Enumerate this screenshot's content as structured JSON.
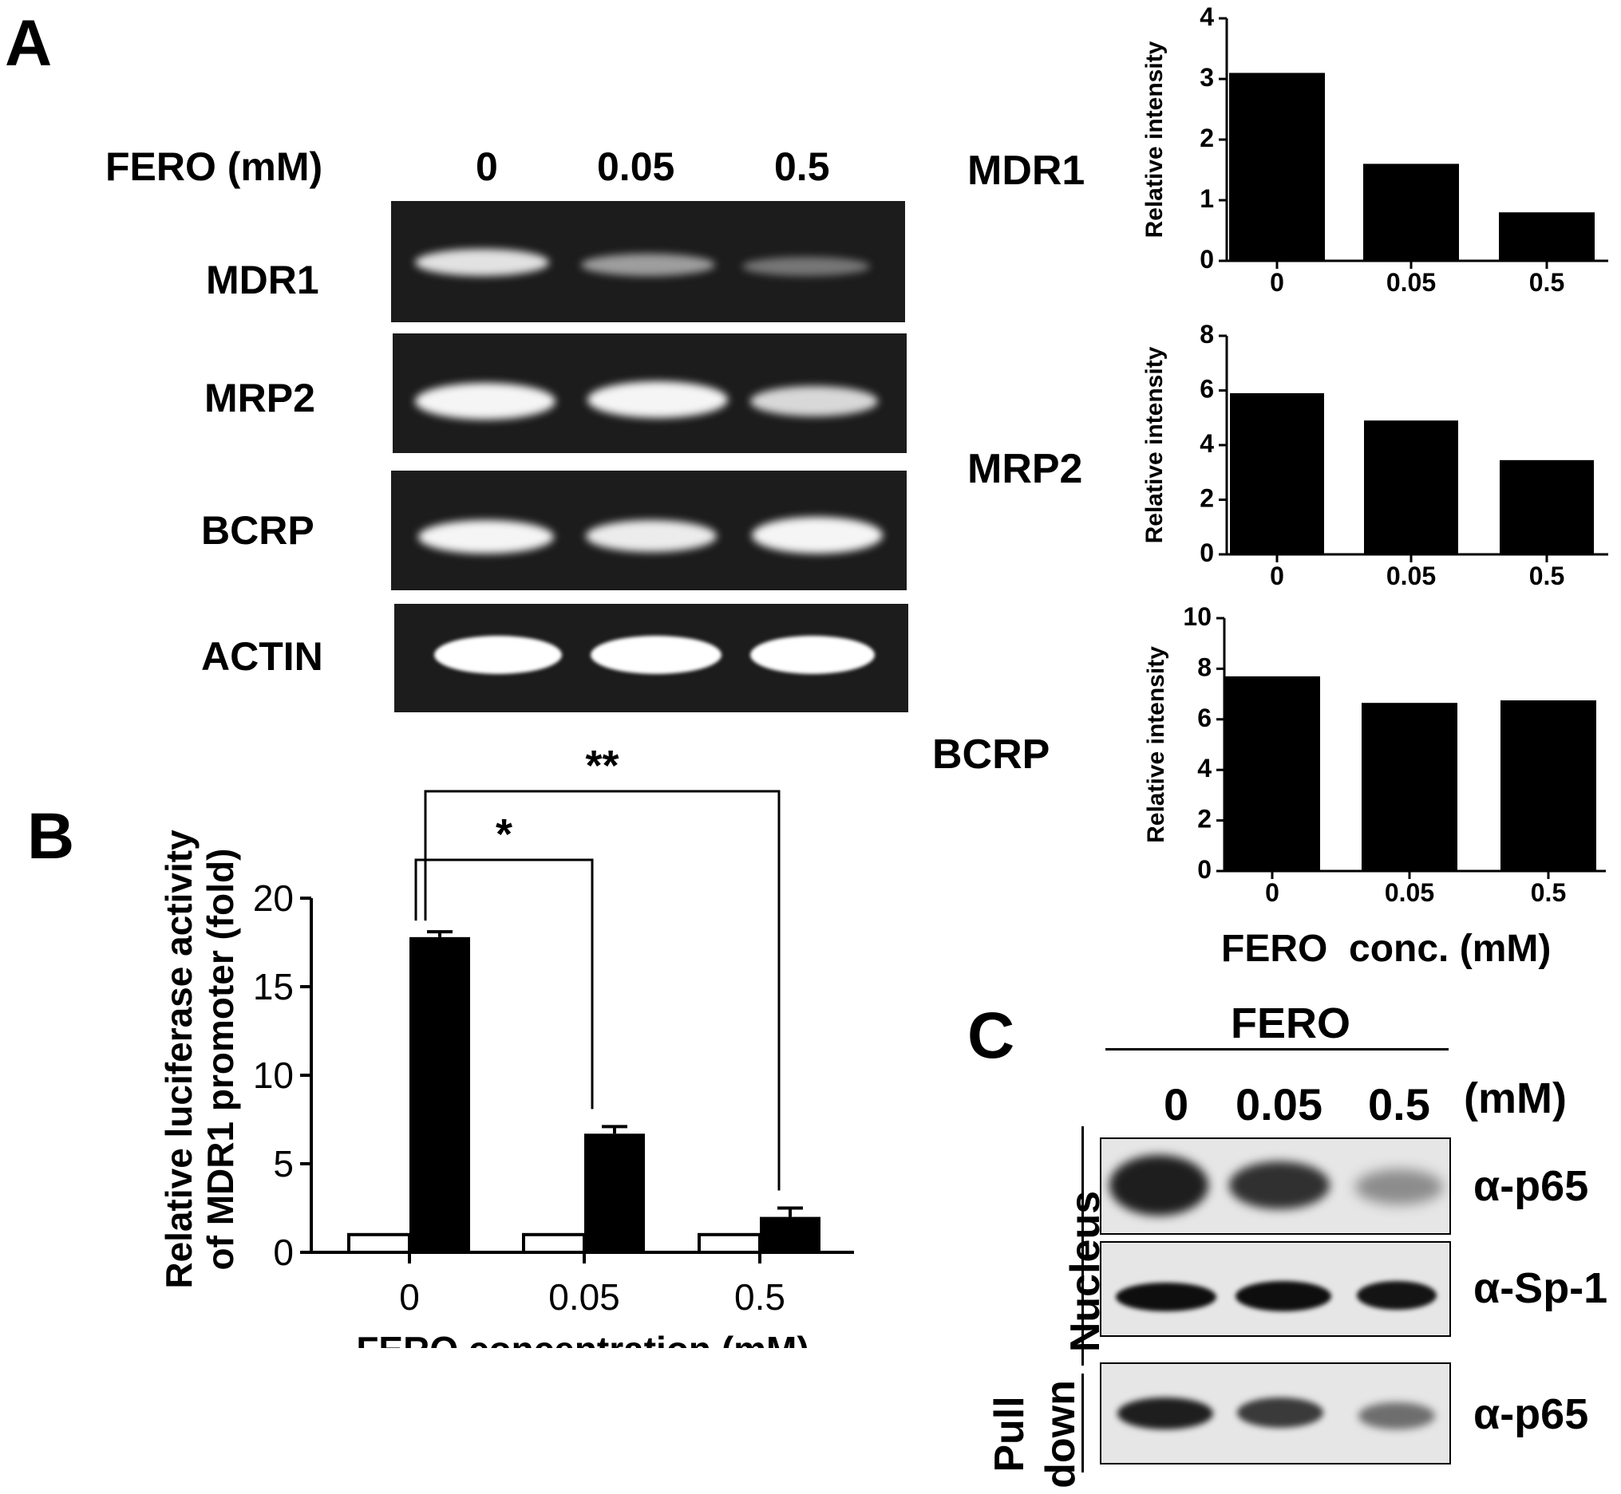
{
  "panels": {
    "a": "A",
    "b": "B",
    "c": "C"
  },
  "gel_a": {
    "header_label": "FERO (mM)",
    "lanes": [
      "0",
      "0.05",
      "0.5"
    ],
    "rows": [
      "MDR1",
      "MRP2",
      "BCRP",
      "ACTIN"
    ],
    "band_intensity": {
      "MDR1": [
        0.85,
        0.5,
        0.3
      ],
      "MRP2": [
        0.95,
        0.95,
        0.8
      ],
      "BCRP": [
        0.95,
        0.9,
        0.95
      ],
      "ACTIN": [
        1.0,
        1.0,
        1.0
      ]
    }
  },
  "side_labels": {
    "mdr1": "MDR1",
    "mrp2": "MRP2",
    "bcrp": "BCRP"
  },
  "shared_xlabel": "FERO  conc. (mM)",
  "chart_data": [
    {
      "type": "bar",
      "id": "mdr1",
      "categories": [
        "0",
        "0.05",
        "0.5"
      ],
      "values": [
        3.1,
        1.6,
        0.8
      ],
      "ylabel": "Relative  intensity",
      "ylim": [
        0,
        4
      ],
      "yticks": [
        "0",
        "1",
        "2",
        "3",
        "4"
      ]
    },
    {
      "type": "bar",
      "id": "mrp2",
      "categories": [
        "0",
        "0.05",
        "0.5"
      ],
      "values": [
        5.9,
        4.9,
        3.45
      ],
      "ylabel": "Relative  intensity",
      "ylim": [
        0,
        8
      ],
      "yticks": [
        "0",
        "2",
        "4",
        "6",
        "8"
      ]
    },
    {
      "type": "bar",
      "id": "bcrp",
      "categories": [
        "0",
        "0.05",
        "0.5"
      ],
      "values": [
        7.7,
        6.65,
        6.75
      ],
      "ylabel": "Relative  intensity",
      "ylim": [
        0,
        10
      ],
      "yticks": [
        "0",
        "2",
        "4",
        "6",
        "8",
        "10"
      ]
    },
    {
      "type": "bar",
      "id": "luciferase",
      "categories": [
        "0",
        "0.05",
        "0.5"
      ],
      "series": [
        {
          "values": [
            1.0,
            1.0,
            1.0
          ],
          "color": "#ffffff"
        },
        {
          "values": [
            17.8,
            6.7,
            2.0
          ],
          "error": [
            0.3,
            0.4,
            0.5
          ],
          "color": "#000000"
        }
      ],
      "ylabel_line1": "Relative luciferase activity",
      "ylabel_line2": "of MDR1 promoter (fold)",
      "xlabel": "FERO concentration (mM)",
      "ylim": [
        0,
        20
      ],
      "yticks": [
        "0",
        "5",
        "10",
        "15",
        "20"
      ],
      "significance": [
        {
          "from": 0,
          "to": 1,
          "label": "*"
        },
        {
          "from": 0,
          "to": 2,
          "label": "**"
        }
      ]
    }
  ],
  "blot_c": {
    "header": "FERO",
    "lanes": [
      "0",
      "0.05",
      "0.5"
    ],
    "unit": "(mM)",
    "groups": [
      "Nucleus",
      "Pull down"
    ],
    "group_pull_line1": "Pull",
    "group_pull_line2": "down",
    "antibodies": [
      "α-p65",
      "α-Sp-1",
      "α-p65"
    ]
  }
}
